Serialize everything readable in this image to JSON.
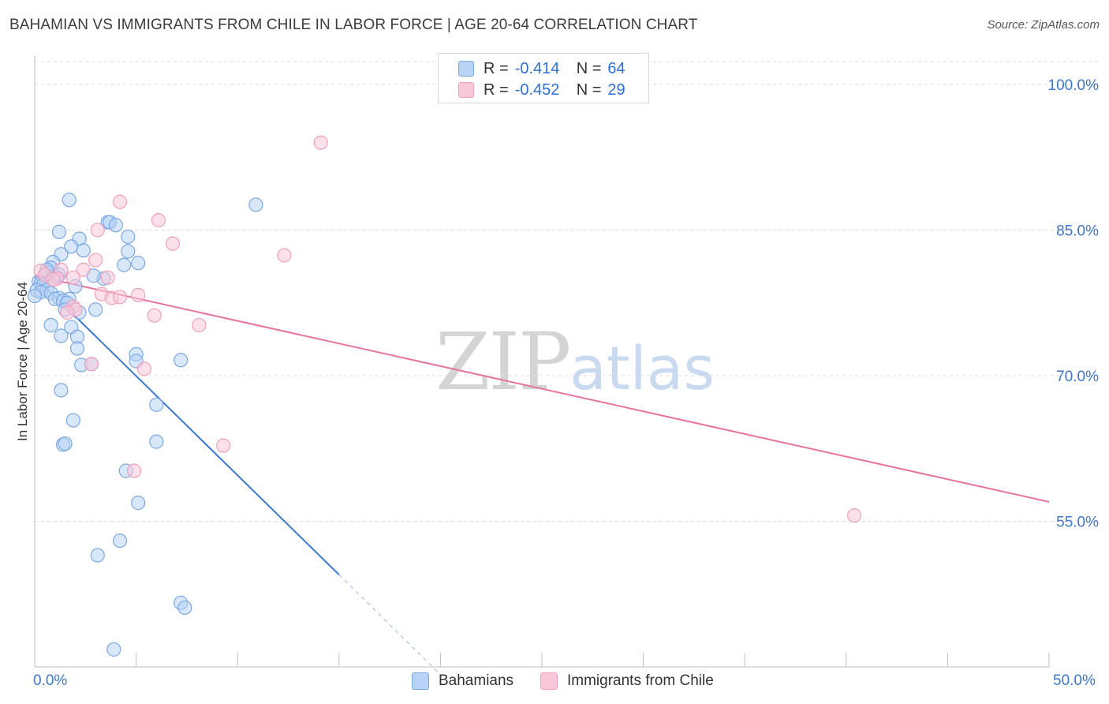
{
  "title": "BAHAMIAN VS IMMIGRANTS FROM CHILE IN LABOR FORCE | AGE 20-64 CORRELATION CHART",
  "source": "Source: ZipAtlas.com",
  "watermark": {
    "zip": "ZIP",
    "atlas": "atlas"
  },
  "legend_top": {
    "rows": [
      {
        "r_label": "R = ",
        "r_value": "-0.414",
        "n_label": "N = ",
        "n_value": "64"
      },
      {
        "r_label": "R = ",
        "r_value": "-0.452",
        "n_label": "N = ",
        "n_value": "29"
      }
    ]
  },
  "colors": {
    "blue": "#3b78cf",
    "blue_fill": "#b8d3f5",
    "blue_stroke": "#7aa8e4",
    "pink": "#e8739b",
    "pink_fill": "#f9c8d8",
    "pink_stroke": "#f0a0bb",
    "axis_label": "#3b78cf",
    "grid": "#dddddd"
  },
  "chart_data": {
    "type": "scatter",
    "title": "BAHAMIAN VS IMMIGRANTS FROM CHILE IN LABOR FORCE | AGE 20-64 CORRELATION CHART",
    "xlabel": "",
    "ylabel": "In Labor Force | Age 20-64",
    "xlim": [
      0,
      50
    ],
    "ylim": [
      40,
      103
    ],
    "x_tick_labels": [
      "0.0%",
      "50.0%"
    ],
    "y_ticks": [
      55,
      70,
      85,
      100
    ],
    "y_tick_labels": [
      "55.0%",
      "70.0%",
      "85.0%",
      "100.0%"
    ],
    "series": [
      {
        "name": "Bahamians",
        "r": -0.414,
        "n": 64,
        "trend": {
          "x0": 0,
          "y0": 80.2,
          "x1": 15,
          "y1": 49.5,
          "dash_to_x": 20,
          "dash_to_y": 39.2
        },
        "points": [
          [
            1.7,
            88.1
          ],
          [
            3.6,
            85.8
          ],
          [
            3.7,
            85.8
          ],
          [
            4.0,
            85.5
          ],
          [
            4.6,
            84.3
          ],
          [
            1.2,
            84.8
          ],
          [
            2.2,
            84.1
          ],
          [
            1.8,
            83.3
          ],
          [
            2.4,
            82.9
          ],
          [
            4.6,
            82.8
          ],
          [
            1.3,
            82.5
          ],
          [
            0.9,
            81.7
          ],
          [
            4.4,
            81.4
          ],
          [
            5.1,
            81.6
          ],
          [
            0.8,
            81.1
          ],
          [
            0.7,
            80.6
          ],
          [
            0.5,
            80.3
          ],
          [
            1.0,
            80.3
          ],
          [
            1.1,
            80.2
          ],
          [
            3.4,
            80.0
          ],
          [
            0.2,
            79.7
          ],
          [
            0.3,
            79.5
          ],
          [
            0.4,
            79.3
          ],
          [
            2.0,
            79.2
          ],
          [
            0.1,
            78.8
          ],
          [
            0.6,
            78.8
          ],
          [
            0.3,
            78.6
          ],
          [
            0.8,
            78.5
          ],
          [
            0.0,
            78.2
          ],
          [
            1.2,
            78.0
          ],
          [
            1.0,
            77.9
          ],
          [
            1.7,
            77.9
          ],
          [
            1.4,
            77.7
          ],
          [
            1.6,
            77.5
          ],
          [
            1.5,
            76.8
          ],
          [
            3.0,
            76.8
          ],
          [
            2.2,
            76.5
          ],
          [
            0.8,
            75.2
          ],
          [
            1.8,
            75.0
          ],
          [
            1.3,
            74.1
          ],
          [
            2.1,
            74.0
          ],
          [
            2.1,
            72.8
          ],
          [
            5.0,
            72.2
          ],
          [
            7.2,
            71.6
          ],
          [
            5.0,
            71.5
          ],
          [
            2.3,
            71.1
          ],
          [
            2.8,
            71.2
          ],
          [
            1.3,
            68.5
          ],
          [
            6.0,
            67.0
          ],
          [
            1.9,
            65.4
          ],
          [
            1.4,
            62.9
          ],
          [
            1.5,
            63.0
          ],
          [
            6.0,
            63.2
          ],
          [
            4.5,
            60.2
          ],
          [
            5.1,
            56.9
          ],
          [
            4.2,
            53.0
          ],
          [
            3.1,
            51.5
          ],
          [
            7.2,
            46.6
          ],
          [
            7.4,
            46.1
          ],
          [
            3.9,
            41.8
          ],
          [
            10.9,
            87.6
          ],
          [
            0.6,
            80.9
          ],
          [
            2.9,
            80.3
          ],
          [
            1.2,
            80.4
          ]
        ]
      },
      {
        "name": "Immigrants from Chile",
        "r": -0.452,
        "n": 29,
        "trend": {
          "x0": 0,
          "y0": 80.3,
          "x1": 50,
          "y1": 57.0
        },
        "points": [
          [
            14.1,
            94.0
          ],
          [
            4.2,
            87.9
          ],
          [
            6.1,
            86.0
          ],
          [
            3.1,
            85.0
          ],
          [
            6.8,
            83.6
          ],
          [
            12.3,
            82.4
          ],
          [
            3.0,
            81.9
          ],
          [
            0.3,
            80.8
          ],
          [
            1.3,
            80.9
          ],
          [
            2.4,
            80.9
          ],
          [
            0.5,
            80.4
          ],
          [
            1.1,
            80.0
          ],
          [
            1.9,
            80.1
          ],
          [
            0.9,
            79.9
          ],
          [
            3.6,
            80.1
          ],
          [
            3.3,
            78.4
          ],
          [
            5.1,
            78.3
          ],
          [
            3.8,
            78.0
          ],
          [
            4.2,
            78.1
          ],
          [
            1.9,
            77.1
          ],
          [
            2.0,
            76.8
          ],
          [
            1.6,
            76.5
          ],
          [
            5.9,
            76.2
          ],
          [
            8.1,
            75.2
          ],
          [
            2.8,
            71.2
          ],
          [
            5.4,
            70.7
          ],
          [
            9.3,
            62.8
          ],
          [
            4.9,
            60.2
          ],
          [
            40.4,
            55.6
          ]
        ]
      }
    ]
  },
  "bottom_legend": {
    "items": [
      {
        "label": "Bahamians"
      },
      {
        "label": "Immigrants from Chile"
      }
    ]
  }
}
